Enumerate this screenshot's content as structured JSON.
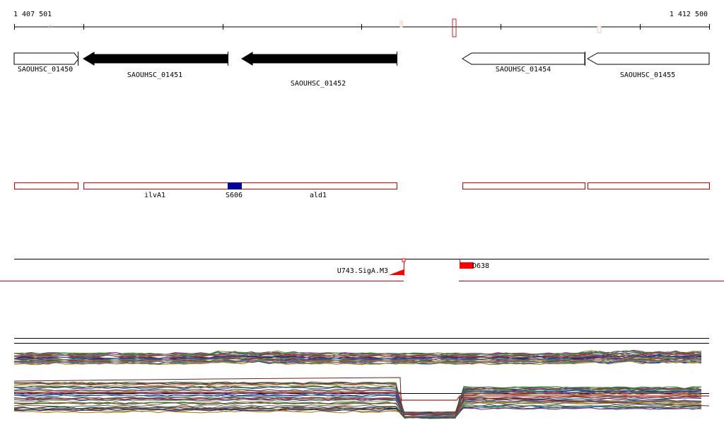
{
  "ruler": {
    "start_label": "1 407 501",
    "end_label": "1 412 500"
  },
  "genes": [
    {
      "name": "SAOUHSC_01450",
      "strand": "+",
      "style": "outline"
    },
    {
      "name": "SAOUHSC_01451",
      "strand": "-",
      "style": "filled"
    },
    {
      "name": "SAOUHSC_01452",
      "strand": "-",
      "style": "filled"
    },
    {
      "name": "SAOUHSC_01454",
      "strand": "-",
      "style": "outline"
    },
    {
      "name": "SAOUHSC_01455",
      "strand": "-",
      "style": "outline"
    }
  ],
  "transcripts": {
    "labels": {
      "ilvA1": "ilvA1",
      "s606": "S606",
      "ald1": "ald1"
    }
  },
  "tss": {
    "left_label": "U743.SigA.M3",
    "right_label": "D638"
  },
  "colors": {
    "gene_fill": "#000000",
    "transcript_outline": "#cc0000",
    "s606_fill": "#000099",
    "tss_red": "#ff0000"
  }
}
